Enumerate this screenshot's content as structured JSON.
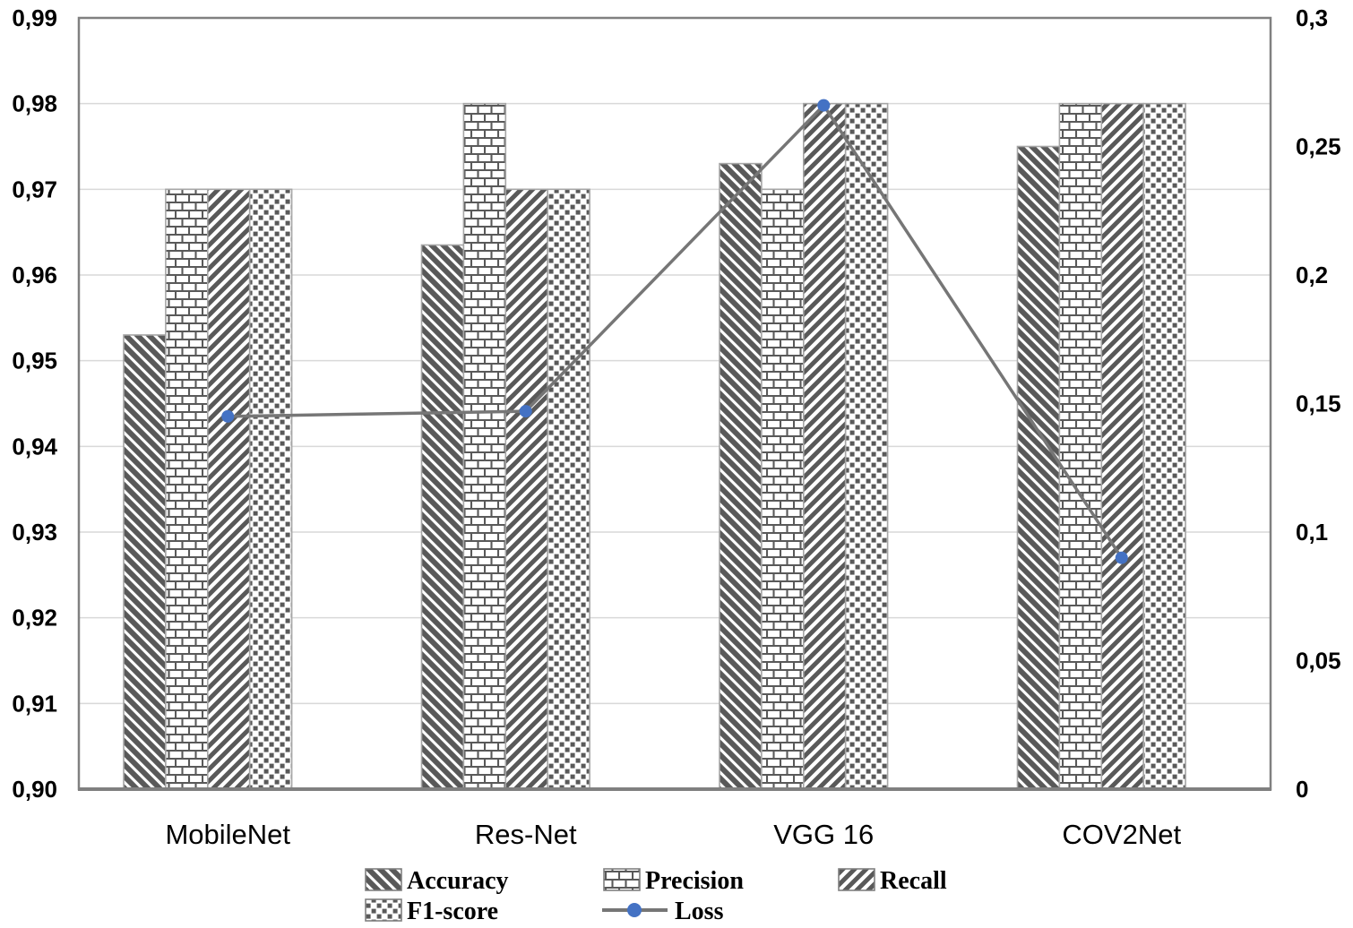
{
  "chart_data": {
    "type": "bar",
    "subtype": "grouped-bar-with-line-overlay",
    "title": "",
    "xlabel": "",
    "ylabel_left": "",
    "ylabel_right": "",
    "categories": [
      "MobileNet",
      "Res-Net",
      "VGG 16",
      "COV2Net"
    ],
    "series": [
      {
        "name": "Accuracy",
        "type": "bar",
        "axis": "left",
        "pattern": "diagonal-down",
        "values": [
          0.953,
          0.9635,
          0.973,
          0.975
        ]
      },
      {
        "name": "Precision",
        "type": "bar",
        "axis": "left",
        "pattern": "brick",
        "values": [
          0.97,
          0.98,
          0.97,
          0.98
        ]
      },
      {
        "name": "Recall",
        "type": "bar",
        "axis": "left",
        "pattern": "diagonal-up",
        "values": [
          0.97,
          0.97,
          0.98,
          0.98
        ]
      },
      {
        "name": "F1-score",
        "type": "bar",
        "axis": "left",
        "pattern": "checker",
        "values": [
          0.97,
          0.97,
          0.98,
          0.98
        ]
      },
      {
        "name": "Loss",
        "type": "line",
        "axis": "right",
        "pattern": "line-marker",
        "values": [
          0.145,
          0.147,
          0.266,
          0.09
        ]
      }
    ],
    "left_axis": {
      "min": 0.9,
      "max": 0.99,
      "step": 0.01,
      "tick_values": [
        0.99,
        0.98,
        0.97,
        0.96,
        0.95,
        0.94,
        0.93,
        0.92,
        0.91,
        0.9
      ],
      "tick_labels": [
        "0,99",
        "0,98",
        "0,97",
        "0,96",
        "0,95",
        "0,94",
        "0,93",
        "0,92",
        "0,91",
        "0,90"
      ]
    },
    "right_axis": {
      "min": 0,
      "max": 0.3,
      "step": 0.05,
      "tick_values": [
        0.3,
        0.25,
        0.2,
        0.15,
        0.1,
        0.05,
        0
      ],
      "tick_labels": [
        "0,3",
        "0,25",
        "0,2",
        "0,15",
        "0,1",
        "0,05",
        "0"
      ]
    },
    "grid": "horizontal",
    "legend": {
      "position": "bottom",
      "rows": [
        [
          "Accuracy",
          "Precision",
          "Recall"
        ],
        [
          "F1-score",
          "Loss"
        ]
      ]
    },
    "colors": {
      "background": "#ffffff",
      "pattern_ink": "#595959",
      "bar_border": "#a6a6a6",
      "gridline": "#d9d9d9",
      "plot_border": "#808080",
      "loss_line": "#767676",
      "loss_marker": "#4472c4",
      "text": "#000000"
    }
  }
}
